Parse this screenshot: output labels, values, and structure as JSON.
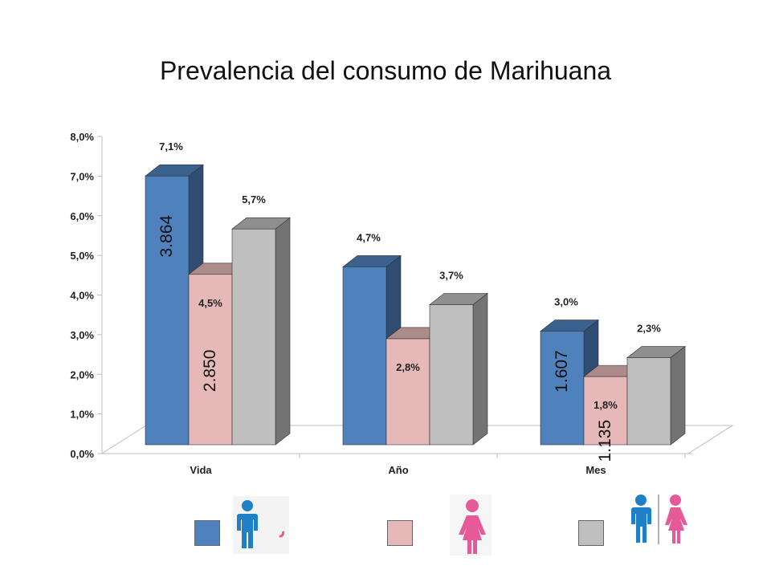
{
  "chart_data": {
    "type": "bar",
    "title": "Prevalencia del consumo de Marihuana",
    "categories": [
      "Vida",
      "Año",
      "Mes"
    ],
    "ylim": [
      0,
      8
    ],
    "yticks": [
      "0,0%",
      "1,0%",
      "2,0%",
      "3,0%",
      "4,0%",
      "5,0%",
      "6,0%",
      "7,0%",
      "8,0%"
    ],
    "grid": false,
    "legend": "bottom",
    "series": [
      {
        "color": "#4f81bd",
        "values": [
          7.1,
          4.7,
          3.0
        ],
        "labels": [
          "7,1%",
          "4,7%",
          "3,0%"
        ],
        "counts": [
          "3.864",
          "",
          "1.607"
        ]
      },
      {
        "color": "#e6b9b8",
        "values": [
          4.5,
          2.8,
          1.8
        ],
        "labels": [
          "4,5%",
          "2,8%",
          "1,8%"
        ],
        "counts": [
          "2.850",
          "",
          "1.135"
        ]
      },
      {
        "color": "#bfbfbf",
        "values": [
          5.7,
          3.7,
          2.3
        ],
        "labels": [
          "5,7%",
          "3,7%",
          "2,3%"
        ],
        "counts": [
          "",
          "",
          ""
        ]
      }
    ]
  },
  "legend_icons": [
    "male-person-icon",
    "female-person-icon",
    "male-and-female-icon"
  ],
  "colors": {
    "male": "#1f7fc7",
    "female": "#e75a9a"
  }
}
